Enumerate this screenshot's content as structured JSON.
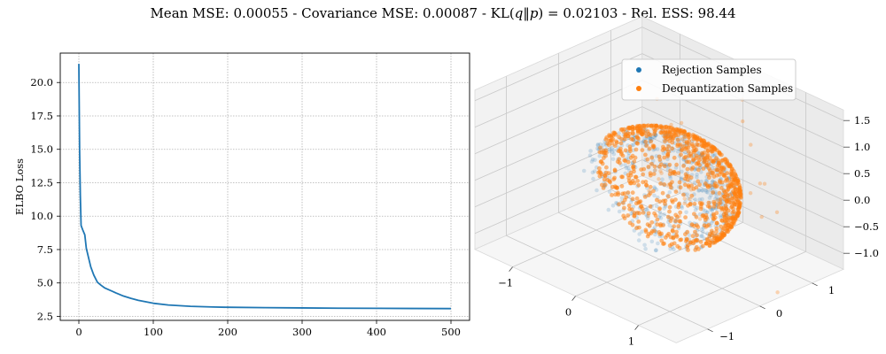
{
  "figure": {
    "suptitle_parts": [
      "Mean MSE: 0.00055 - Covariance MSE: 0.00087 - KL(",
      "q",
      "‖",
      "p",
      ") = 0.02103 - Rel. ESS: 98.44"
    ]
  },
  "chart_data": [
    {
      "type": "line",
      "title": "",
      "xlabel": "",
      "ylabel": "ELBO Loss",
      "xlim": [
        -25,
        525
      ],
      "ylim": [
        2.2,
        22.2
      ],
      "xticks": [
        0,
        100,
        200,
        300,
        400,
        500
      ],
      "xtick_labels": [
        "0",
        "100",
        "200",
        "300",
        "400",
        "500"
      ],
      "yticks": [
        2.5,
        5.0,
        7.5,
        10.0,
        12.5,
        15.0,
        17.5,
        20.0
      ],
      "ytick_labels": [
        "2.5",
        "5.0",
        "7.5",
        "10.0",
        "12.5",
        "15.0",
        "17.5",
        "20.0"
      ],
      "grid": true,
      "series": [
        {
          "name": "ELBO Loss",
          "color": "#1f77b4",
          "x": [
            0,
            1,
            2,
            3,
            5,
            8,
            10,
            13,
            16,
            20,
            25,
            30,
            35,
            40,
            50,
            60,
            70,
            80,
            100,
            120,
            150,
            180,
            200,
            250,
            300,
            350,
            400,
            450,
            500
          ],
          "y": [
            21.4,
            15.0,
            11.5,
            9.3,
            9.0,
            8.6,
            7.6,
            6.9,
            6.2,
            5.6,
            5.05,
            4.82,
            4.62,
            4.5,
            4.25,
            4.02,
            3.85,
            3.7,
            3.48,
            3.35,
            3.25,
            3.2,
            3.18,
            3.15,
            3.13,
            3.11,
            3.1,
            3.09,
            3.08
          ]
        }
      ]
    },
    {
      "type": "scatter3d",
      "title": "",
      "xlim": [
        -1.6,
        1.6
      ],
      "ylim": [
        -1.6,
        1.6
      ],
      "zlim": [
        -1.3,
        1.7
      ],
      "xticks": [
        -1,
        0,
        1
      ],
      "xtick_labels": [
        "−1",
        "0",
        "1"
      ],
      "yticks": [
        -1,
        0,
        1
      ],
      "ytick_labels": [
        "−1",
        "0",
        "1"
      ],
      "zticks": [
        -1.0,
        -0.5,
        0.0,
        0.5,
        1.0,
        1.5
      ],
      "ztick_labels": [
        "−1.0",
        "−0.5",
        "0.0",
        "0.5",
        "1.0",
        "1.5"
      ],
      "grid": true,
      "legend": {
        "placement": "top-right",
        "entries": [
          "Rejection Samples",
          "Dequantization Samples"
        ]
      },
      "series": [
        {
          "name": "Rejection Samples",
          "color": "#1f77b4",
          "count": 500,
          "distribution": "ball-surface-ish"
        },
        {
          "name": "Dequantization Samples",
          "color": "#ff7f0e",
          "count": 900,
          "distribution": "hemisphere-surface"
        }
      ]
    }
  ]
}
